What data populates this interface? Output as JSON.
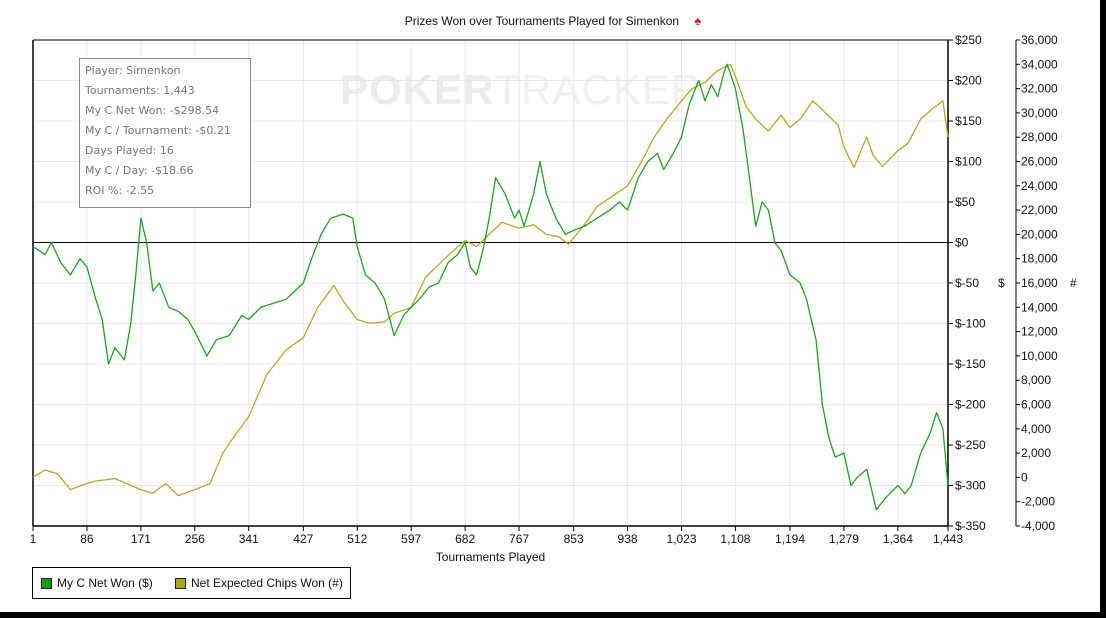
{
  "title": "Prizes Won over Tournaments Played for Simenkon",
  "title_icon": "spade-icon",
  "watermark": {
    "bold": "POKER",
    "light": "TRACKER"
  },
  "info_box": [
    "Player: Simenkon",
    "Tournaments: 1,443",
    "My C Net Won: -$298.54",
    "My C / Tournament: -$0.21",
    "Days Played: 16",
    "My C / Day: -$18.66",
    "ROI %: -2.55"
  ],
  "legend": [
    {
      "label": "My C Net Won ($)",
      "color": "#1a9a1a"
    },
    {
      "label": "Net Expected Chips Won (#)",
      "color": "#a8a822"
    }
  ],
  "colors": {
    "net_won": "#22a022",
    "expected_chips": "#b0aa2a",
    "grid": "#e8e8e8",
    "axis": "#000000"
  },
  "chart_data": {
    "type": "line",
    "title": "Prizes Won over Tournaments Played for Simenkon",
    "xlabel": "Tournaments Played",
    "ylabel_left": "$",
    "ylabel_right": "#",
    "x_ticks": [
      "1",
      "86",
      "171",
      "256",
      "341",
      "427",
      "512",
      "597",
      "682",
      "767",
      "853",
      "938",
      "1,023",
      "1,108",
      "1,194",
      "1,279",
      "1,364",
      "1,443"
    ],
    "y_left_ticks": [
      "$250",
      "$200",
      "$150",
      "$100",
      "$50",
      "$0",
      "$-50",
      "$-100",
      "$-150",
      "$-200",
      "$-250",
      "$-300",
      "$-350"
    ],
    "y_right_ticks": [
      "36,000",
      "34,000",
      "32,000",
      "30,000",
      "28,000",
      "26,000",
      "24,000",
      "22,000",
      "20,000",
      "18,000",
      "16,000",
      "14,000",
      "12,000",
      "10,000",
      "8,000",
      "6,000",
      "4,000",
      "2,000",
      "0",
      "-2,000",
      "-4,000"
    ],
    "xlim": [
      1,
      1443
    ],
    "ylim_left": [
      -350,
      250
    ],
    "ylim_right": [
      -4000,
      36000
    ],
    "grid": true,
    "legend_position": "bottom-left",
    "series": [
      {
        "name": "My C Net Won ($)",
        "axis": "left",
        "x": [
          1,
          20,
          30,
          45,
          60,
          75,
          86,
          100,
          110,
          120,
          130,
          145,
          155,
          163,
          171,
          180,
          190,
          200,
          215,
          230,
          245,
          256,
          275,
          290,
          310,
          330,
          341,
          360,
          380,
          400,
          427,
          440,
          455,
          470,
          490,
          505,
          512,
          525,
          540,
          555,
          570,
          585,
          597,
          610,
          625,
          640,
          655,
          670,
          682,
          690,
          700,
          710,
          720,
          730,
          745,
          760,
          767,
          775,
          790,
          800,
          810,
          825,
          840,
          853,
          870,
          890,
          910,
          925,
          938,
          955,
          970,
          985,
          995,
          1010,
          1023,
          1035,
          1050,
          1060,
          1070,
          1080,
          1090,
          1095,
          1108,
          1120,
          1130,
          1140,
          1150,
          1160,
          1170,
          1180,
          1194,
          1210,
          1220,
          1235,
          1245,
          1255,
          1265,
          1279,
          1290,
          1300,
          1315,
          1330,
          1345,
          1364,
          1375,
          1385,
          1400,
          1415,
          1425,
          1435,
          1443
        ],
        "values": [
          -5,
          -15,
          0,
          -25,
          -40,
          -20,
          -30,
          -70,
          -95,
          -150,
          -130,
          -145,
          -100,
          -40,
          30,
          0,
          -60,
          -50,
          -80,
          -85,
          -95,
          -110,
          -140,
          -120,
          -115,
          -90,
          -95,
          -80,
          -75,
          -70,
          -50,
          -20,
          10,
          30,
          35,
          30,
          -5,
          -40,
          -50,
          -70,
          -115,
          -90,
          -80,
          -70,
          -55,
          -50,
          -25,
          -15,
          0,
          -30,
          -40,
          -10,
          30,
          80,
          60,
          30,
          40,
          20,
          60,
          100,
          60,
          30,
          10,
          15,
          20,
          30,
          40,
          50,
          40,
          80,
          100,
          110,
          90,
          110,
          130,
          170,
          200,
          175,
          195,
          180,
          210,
          220,
          190,
          140,
          80,
          20,
          50,
          40,
          0,
          -10,
          -40,
          -50,
          -70,
          -120,
          -200,
          -240,
          -265,
          -260,
          -300,
          -290,
          -280,
          -330,
          -315,
          -300,
          -310,
          -300,
          -260,
          -235,
          -210,
          -230,
          -300
        ]
      },
      {
        "name": "Net Expected Chips Won (#)",
        "axis": "right",
        "x": [
          1,
          10,
          20,
          40,
          60,
          86,
          100,
          130,
          171,
          190,
          210,
          230,
          256,
          280,
          300,
          320,
          341,
          370,
          400,
          427,
          450,
          475,
          490,
          512,
          530,
          555,
          570,
          597,
          620,
          640,
          660,
          682,
          700,
          720,
          740,
          767,
          790,
          810,
          830,
          845,
          853,
          870,
          890,
          910,
          938,
          960,
          980,
          1000,
          1023,
          1040,
          1060,
          1080,
          1100,
          1108,
          1125,
          1140,
          1160,
          1180,
          1194,
          1210,
          1230,
          1250,
          1270,
          1279,
          1295,
          1305,
          1315,
          1325,
          1340,
          1364,
          1380,
          1400,
          1420,
          1435,
          1443
        ],
        "values": [
          0,
          300,
          600,
          300,
          -1000,
          -500,
          -300,
          -100,
          -1000,
          -1300,
          -500,
          -1500,
          -1000,
          -500,
          2000,
          3500,
          5000,
          8500,
          10500,
          11500,
          14000,
          15800,
          14500,
          13000,
          12700,
          12800,
          13500,
          14000,
          16500,
          17500,
          18500,
          19500,
          19000,
          20000,
          21000,
          20500,
          20800,
          20000,
          19800,
          19200,
          19700,
          20800,
          22300,
          23000,
          24000,
          26000,
          28000,
          29500,
          31000,
          32000,
          32500,
          33500,
          34000,
          33000,
          30500,
          29500,
          28500,
          29800,
          28800,
          29500,
          31000,
          30000,
          29000,
          27200,
          25500,
          26800,
          28000,
          26500,
          25600,
          26900,
          27500,
          29500,
          30400,
          31000,
          28000
        ]
      }
    ]
  }
}
